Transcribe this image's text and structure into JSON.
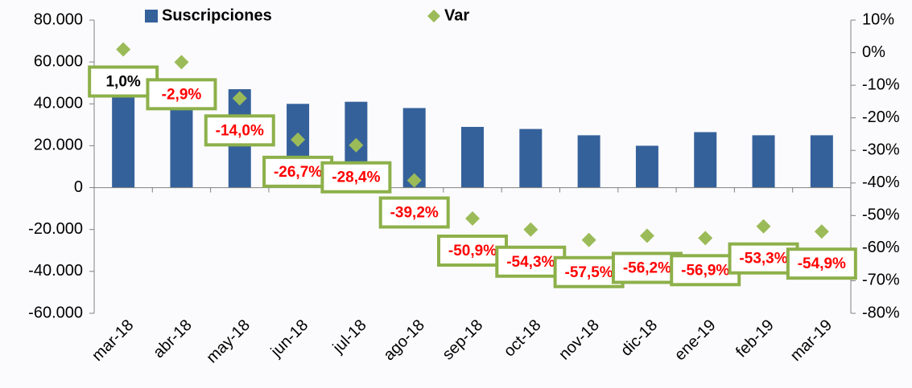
{
  "chart_data": {
    "type": "bar",
    "categories": [
      "mar-18",
      "abr-18",
      "may-18",
      "jun-18",
      "jul-18",
      "ago-18",
      "sep-18",
      "oct-18",
      "nov-18",
      "dic-18",
      "ene-19",
      "feb-19",
      "mar-19"
    ],
    "series": [
      {
        "name": "Suscripciones",
        "type": "bar",
        "color": "#35619b",
        "values": [
          45000,
          43000,
          47000,
          40000,
          41000,
          38000,
          29000,
          28000,
          25000,
          20000,
          26500,
          25000,
          25000
        ]
      },
      {
        "name": "Var",
        "type": "scatter",
        "axis": "y2",
        "color": "#9bbb59",
        "values": [
          1.0,
          -2.9,
          -14.0,
          -26.7,
          -28.4,
          -39.2,
          -50.9,
          -54.3,
          -57.5,
          -56.2,
          -56.9,
          -53.3,
          -54.9
        ],
        "value_labels": [
          "1,0%",
          "-2,9%",
          "-14,0%",
          "-26,7%",
          "-28,4%",
          "-39,2%",
          "-50,9%",
          "-54,3%",
          "-57,5%",
          "-56,2%",
          "-56,9%",
          "-53,3%",
          "-54,9%"
        ]
      }
    ],
    "ylim": [
      -60000,
      80000
    ],
    "yticks": [
      {
        "value": 80000,
        "label": "80.000"
      },
      {
        "value": 60000,
        "label": "60.000"
      },
      {
        "value": 40000,
        "label": "40.000"
      },
      {
        "value": 20000,
        "label": "20.000"
      },
      0,
      {
        "value": -20000,
        "label": "-20.000"
      },
      {
        "value": -40000,
        "label": "-40.000"
      },
      {
        "value": -60000,
        "label": "-60.000"
      }
    ],
    "y2lim": [
      -80,
      10
    ],
    "y2ticks": [
      {
        "value": 10,
        "label": "10%"
      },
      {
        "value": 0,
        "label": "0%"
      },
      {
        "value": -10,
        "label": "-10%"
      },
      {
        "value": -20,
        "label": "-20%"
      },
      {
        "value": -30,
        "label": "-30%"
      },
      {
        "value": -40,
        "label": "-40%"
      },
      {
        "value": -50,
        "label": "-50%"
      },
      {
        "value": -60,
        "label": "-60%"
      },
      {
        "value": -70,
        "label": "-70%"
      },
      {
        "value": -80,
        "label": "-80%"
      }
    ],
    "legend": "top"
  }
}
